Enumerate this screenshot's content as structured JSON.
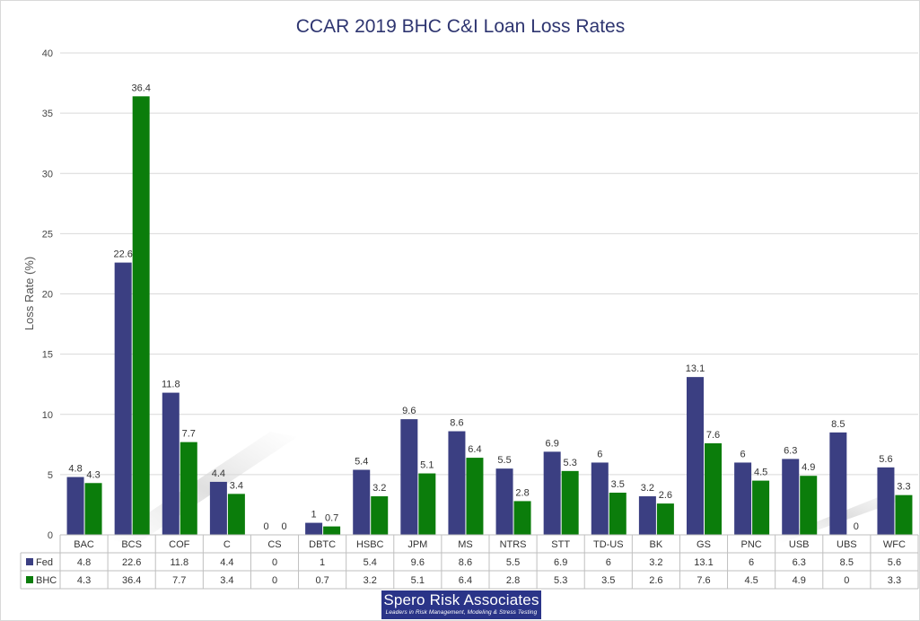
{
  "chart_data": {
    "type": "bar",
    "title": "CCAR 2019 BHC C&I Loan Loss Rates",
    "ylabel": "Loss Rate (%)",
    "xlabel": "",
    "ylim": [
      0,
      40
    ],
    "yticks": [
      0,
      5,
      10,
      15,
      20,
      25,
      30,
      35,
      40
    ],
    "grid": true,
    "legend": "data-table",
    "categories": [
      "BAC",
      "BCS",
      "COF",
      "C",
      "CS",
      "DBTC",
      "HSBC",
      "JPM",
      "MS",
      "NTRS",
      "STT",
      "TD-US",
      "BK",
      "GS",
      "PNC",
      "USB",
      "UBS",
      "WFC"
    ],
    "series": [
      {
        "name": "Fed",
        "color": "#3b3f82",
        "values": [
          4.8,
          22.6,
          11.8,
          4.4,
          0,
          1,
          5.4,
          9.6,
          8.6,
          5.5,
          6.9,
          6,
          3.2,
          13.1,
          6,
          6.3,
          8.5,
          5.6
        ]
      },
      {
        "name": "BHC",
        "color": "#0b7d0b",
        "values": [
          4.3,
          36.4,
          7.7,
          3.4,
          0,
          0.7,
          3.2,
          5.1,
          6.4,
          2.8,
          5.3,
          3.5,
          2.6,
          7.6,
          4.5,
          4.9,
          0,
          3.3
        ]
      }
    ]
  },
  "logo": {
    "name": "Spero Risk Associates",
    "tagline": "Leaders in Risk Management, Modeling & Stress Testing"
  }
}
